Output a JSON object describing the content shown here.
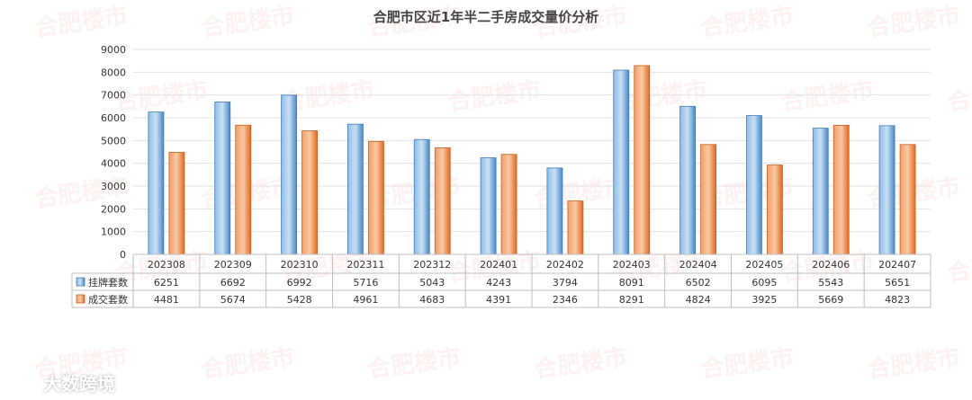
{
  "brand": {
    "label": "大数跨境",
    "icon": "infinity-logo-icon",
    "watermark_text": "合肥楼市"
  },
  "colors": {
    "listing_blue": "#5b9bd5",
    "deal_orange": "#ed7d31"
  },
  "chart_data": {
    "type": "bar",
    "title": "合肥市区近1年半二手房成交量价分析",
    "xlabel": "",
    "ylabel": "",
    "ylim": [
      0,
      9000
    ],
    "yticks": [
      0,
      1000,
      2000,
      3000,
      4000,
      5000,
      6000,
      7000,
      8000,
      9000
    ],
    "grid": true,
    "legend": "data-table-left",
    "categories": [
      "202308",
      "202309",
      "202310",
      "202311",
      "202312",
      "202401",
      "202402",
      "202403",
      "202404",
      "202405",
      "202406",
      "202407"
    ],
    "series": [
      {
        "name": "挂牌套数",
        "color": "#5b9bd5",
        "values": [
          6251,
          6692,
          6992,
          5716,
          5043,
          4243,
          3794,
          8091,
          6502,
          6095,
          5543,
          5651
        ]
      },
      {
        "name": "成交套数",
        "color": "#ed7d31",
        "values": [
          4481,
          5674,
          5428,
          4961,
          4683,
          4391,
          2346,
          8291,
          4824,
          3925,
          5669,
          4823
        ]
      }
    ]
  }
}
